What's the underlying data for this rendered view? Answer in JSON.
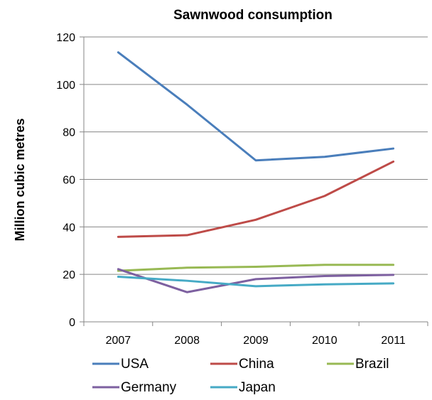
{
  "chart_data": {
    "type": "line",
    "title": "Sawnwood consumption",
    "xlabel": "",
    "ylabel": "Million cubic metres",
    "categories": [
      "2007",
      "2008",
      "2009",
      "2010",
      "2011"
    ],
    "ylim": [
      0,
      120
    ],
    "yticks": [
      0,
      20,
      40,
      60,
      80,
      100,
      120
    ],
    "grid": "horizontal",
    "legend": "bottom",
    "series": [
      {
        "name": "USA",
        "color": "#4a7ebb",
        "values": [
          113.5,
          91.5,
          68,
          69.5,
          73
        ]
      },
      {
        "name": "China",
        "color": "#be4b48",
        "values": [
          35.8,
          36.5,
          43,
          53,
          67.5
        ]
      },
      {
        "name": "Brazil",
        "color": "#98b954",
        "values": [
          21.5,
          22.8,
          23.2,
          24,
          24
        ]
      },
      {
        "name": "Germany",
        "color": "#7d60a0",
        "values": [
          22.2,
          12.5,
          18,
          19.3,
          19.8
        ]
      },
      {
        "name": "Japan",
        "color": "#46aac5",
        "values": [
          19,
          17.3,
          15,
          15.8,
          16.2
        ]
      }
    ]
  }
}
